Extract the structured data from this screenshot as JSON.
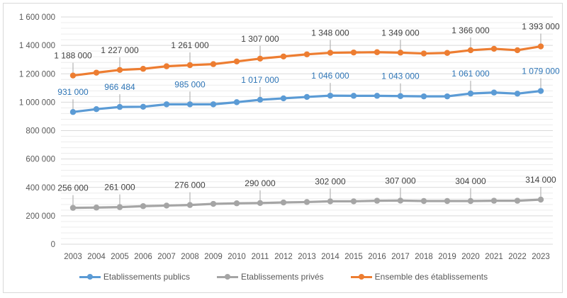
{
  "chart_data": {
    "type": "line",
    "title": "",
    "xlabel": "",
    "ylabel": "",
    "ylim": [
      0,
      1600000
    ],
    "y_major_step": 200000,
    "y_minor_step": 40000,
    "grid": true,
    "legend_position": "bottom",
    "y_tick_labels": [
      "0",
      "200 000",
      "400 000",
      "600 000",
      "800 000",
      "1 000 000",
      "1 200 000",
      "1 400 000",
      "1 600 000"
    ],
    "x": [
      "2003",
      "2004",
      "2005",
      "2006",
      "2007",
      "2008",
      "2009",
      "2010",
      "2011",
      "2012",
      "2013",
      "2014",
      "2015",
      "2016",
      "2017",
      "2018",
      "2019",
      "2020",
      "2021",
      "2022",
      "2023"
    ],
    "series": [
      {
        "name": "Etablissements publics",
        "color": "#5b9bd5",
        "label_color": "#2e75b6",
        "values": [
          931000,
          951000,
          966484,
          968000,
          985000,
          985000,
          985000,
          1000000,
          1017000,
          1027000,
          1037000,
          1046000,
          1045000,
          1045000,
          1043000,
          1041000,
          1041000,
          1061000,
          1068000,
          1060000,
          1079000
        ],
        "labels": [
          "931 000",
          null,
          "966 484",
          null,
          null,
          "985 000",
          null,
          null,
          "1 017 000",
          null,
          null,
          "1 046 000",
          null,
          null,
          "1 043 000",
          null,
          null,
          "1 061 000",
          null,
          null,
          "1 079 000"
        ]
      },
      {
        "name": "Etablissements privés",
        "color": "#a5a5a5",
        "label_color": "#404040",
        "values": [
          256000,
          258000,
          261000,
          268000,
          272000,
          276000,
          284000,
          288000,
          290000,
          294000,
          297000,
          302000,
          302000,
          306000,
          307000,
          304000,
          304000,
          304000,
          306000,
          306000,
          314000
        ],
        "labels": [
          "256 000",
          null,
          "261 000",
          null,
          null,
          "276 000",
          null,
          null,
          "290 000",
          null,
          null,
          "302 000",
          null,
          null,
          "307 000",
          null,
          null,
          "304 000",
          null,
          null,
          "314 000"
        ]
      },
      {
        "name": "Ensemble des établissements",
        "color": "#ed7d31",
        "label_color": "#404040",
        "values": [
          1188000,
          1208000,
          1227000,
          1235000,
          1253000,
          1261000,
          1268000,
          1287000,
          1307000,
          1322000,
          1337000,
          1348000,
          1350000,
          1352000,
          1349000,
          1343000,
          1347000,
          1366000,
          1376000,
          1366000,
          1393000
        ],
        "labels": [
          "1 188 000",
          null,
          "1 227 000",
          null,
          null,
          "1 261 000",
          null,
          null,
          "1 307 000",
          null,
          null,
          "1 348 000",
          null,
          null,
          "1 349 000",
          null,
          null,
          "1 366 000",
          null,
          null,
          "1 393 000"
        ]
      }
    ]
  }
}
